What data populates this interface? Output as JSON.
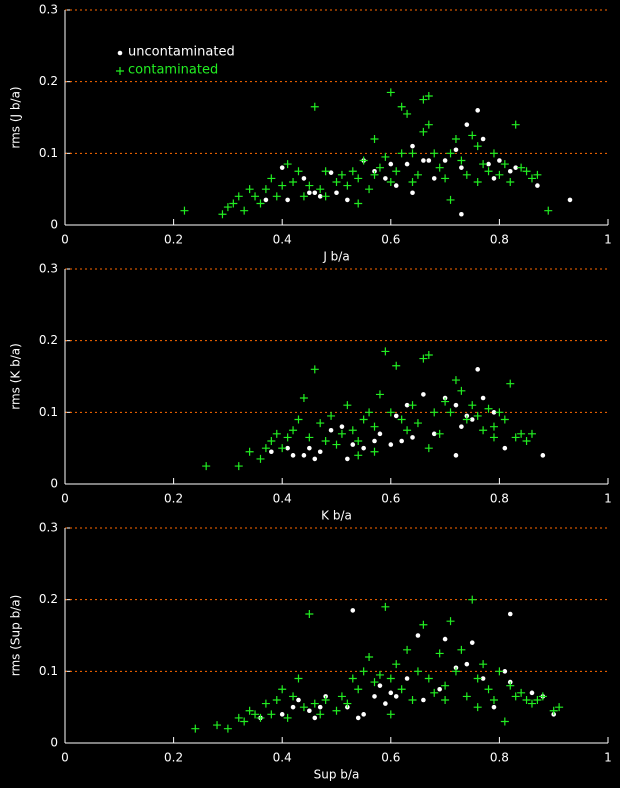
{
  "chart_data": [
    {
      "type": "scatter",
      "xlabel": "J b/a",
      "ylabel": "rms (J b/a)",
      "xlim": [
        0,
        1
      ],
      "ylim": [
        0,
        0.3
      ],
      "xticks": [
        0,
        0.2,
        0.4,
        0.6,
        0.8,
        1
      ],
      "yticks": [
        0,
        0.1,
        0.2,
        0.3
      ],
      "grid": true,
      "grid_color": "#ff6a00",
      "legend": "upper left",
      "series": [
        {
          "name": "uncontaminated",
          "color": "#ffffff",
          "marker": "circle",
          "x": [
            0.37,
            0.4,
            0.41,
            0.44,
            0.45,
            0.46,
            0.47,
            0.49,
            0.52,
            0.55,
            0.57,
            0.59,
            0.6,
            0.61,
            0.63,
            0.64,
            0.64,
            0.66,
            0.67,
            0.68,
            0.7,
            0.72,
            0.73,
            0.74,
            0.76,
            0.77,
            0.78,
            0.79,
            0.8,
            0.82,
            0.83,
            0.87,
            0.93,
            0.73,
            0.5
          ],
          "y": [
            0.035,
            0.08,
            0.035,
            0.065,
            0.045,
            0.045,
            0.04,
            0.073,
            0.035,
            0.09,
            0.075,
            0.065,
            0.085,
            0.055,
            0.085,
            0.11,
            0.045,
            0.09,
            0.09,
            0.065,
            0.09,
            0.105,
            0.015,
            0.14,
            0.16,
            0.12,
            0.085,
            0.065,
            0.09,
            0.075,
            0.08,
            0.055,
            0.035,
            0.08,
            0.045
          ]
        },
        {
          "name": "contaminated",
          "color": "#22ee22",
          "marker": "plus",
          "x": [
            0.22,
            0.29,
            0.3,
            0.31,
            0.32,
            0.33,
            0.34,
            0.35,
            0.36,
            0.37,
            0.38,
            0.39,
            0.4,
            0.41,
            0.42,
            0.43,
            0.44,
            0.45,
            0.46,
            0.47,
            0.48,
            0.5,
            0.51,
            0.52,
            0.53,
            0.54,
            0.55,
            0.56,
            0.57,
            0.58,
            0.59,
            0.6,
            0.6,
            0.61,
            0.62,
            0.62,
            0.63,
            0.64,
            0.65,
            0.66,
            0.66,
            0.67,
            0.68,
            0.69,
            0.7,
            0.71,
            0.72,
            0.73,
            0.74,
            0.75,
            0.76,
            0.77,
            0.78,
            0.79,
            0.8,
            0.81,
            0.82,
            0.83,
            0.84,
            0.85,
            0.86,
            0.87,
            0.89,
            0.57,
            0.67,
            0.71,
            0.76,
            0.54,
            0.48,
            0.64
          ],
          "y": [
            0.02,
            0.015,
            0.025,
            0.03,
            0.04,
            0.02,
            0.05,
            0.04,
            0.03,
            0.05,
            0.065,
            0.04,
            0.055,
            0.085,
            0.06,
            0.075,
            0.04,
            0.055,
            0.165,
            0.05,
            0.04,
            0.06,
            0.07,
            0.055,
            0.075,
            0.065,
            0.09,
            0.05,
            0.07,
            0.08,
            0.095,
            0.185,
            0.06,
            0.075,
            0.1,
            0.165,
            0.155,
            0.1,
            0.07,
            0.13,
            0.175,
            0.18,
            0.1,
            0.08,
            0.065,
            0.1,
            0.12,
            0.09,
            0.07,
            0.125,
            0.11,
            0.085,
            0.075,
            0.1,
            0.07,
            0.085,
            0.06,
            0.14,
            0.08,
            0.075,
            0.065,
            0.07,
            0.02,
            0.12,
            0.14,
            0.035,
            0.06,
            0.03,
            0.075,
            0.06
          ]
        }
      ]
    },
    {
      "type": "scatter",
      "xlabel": "K b/a",
      "ylabel": "rms (K b/a)",
      "xlim": [
        0,
        1
      ],
      "ylim": [
        0,
        0.3
      ],
      "xticks": [
        0,
        0.2,
        0.4,
        0.6,
        0.8,
        1
      ],
      "yticks": [
        0,
        0.1,
        0.2,
        0.3
      ],
      "grid": true,
      "grid_color": "#ff6a00",
      "series": [
        {
          "color": "#ffffff",
          "marker": "circle",
          "x": [
            0.38,
            0.41,
            0.42,
            0.44,
            0.45,
            0.46,
            0.47,
            0.49,
            0.51,
            0.52,
            0.53,
            0.55,
            0.57,
            0.58,
            0.6,
            0.61,
            0.62,
            0.63,
            0.64,
            0.66,
            0.68,
            0.7,
            0.72,
            0.73,
            0.74,
            0.76,
            0.77,
            0.79,
            0.72,
            0.81,
            0.88,
            0.75
          ],
          "y": [
            0.045,
            0.05,
            0.04,
            0.04,
            0.05,
            0.035,
            0.045,
            0.075,
            0.08,
            0.035,
            0.055,
            0.05,
            0.06,
            0.07,
            0.055,
            0.095,
            0.06,
            0.11,
            0.065,
            0.125,
            0.07,
            0.12,
            0.11,
            0.08,
            0.095,
            0.16,
            0.12,
            0.1,
            0.04,
            0.05,
            0.04,
            0.09
          ]
        },
        {
          "color": "#22ee22",
          "marker": "plus",
          "x": [
            0.26,
            0.32,
            0.34,
            0.36,
            0.37,
            0.38,
            0.39,
            0.4,
            0.41,
            0.42,
            0.43,
            0.44,
            0.45,
            0.46,
            0.47,
            0.48,
            0.49,
            0.5,
            0.51,
            0.52,
            0.53,
            0.54,
            0.55,
            0.56,
            0.57,
            0.58,
            0.59,
            0.6,
            0.61,
            0.62,
            0.63,
            0.64,
            0.65,
            0.66,
            0.67,
            0.68,
            0.69,
            0.7,
            0.71,
            0.72,
            0.73,
            0.74,
            0.75,
            0.76,
            0.77,
            0.78,
            0.79,
            0.8,
            0.81,
            0.82,
            0.83,
            0.84,
            0.85,
            0.86,
            0.57,
            0.67,
            0.79,
            0.54
          ],
          "y": [
            0.025,
            0.025,
            0.045,
            0.035,
            0.05,
            0.06,
            0.07,
            0.05,
            0.065,
            0.075,
            0.09,
            0.12,
            0.065,
            0.16,
            0.085,
            0.06,
            0.095,
            0.055,
            0.07,
            0.11,
            0.075,
            0.06,
            0.09,
            0.1,
            0.08,
            0.125,
            0.185,
            0.1,
            0.165,
            0.09,
            0.075,
            0.11,
            0.085,
            0.175,
            0.18,
            0.1,
            0.07,
            0.115,
            0.1,
            0.145,
            0.13,
            0.09,
            0.11,
            0.095,
            0.075,
            0.105,
            0.08,
            0.1,
            0.09,
            0.14,
            0.065,
            0.07,
            0.06,
            0.07,
            0.045,
            0.05,
            0.065,
            0.04
          ]
        }
      ]
    },
    {
      "type": "scatter",
      "xlabel": "Sup b/a",
      "ylabel": "rms (Sup b/a)",
      "xlim": [
        0,
        1
      ],
      "ylim": [
        0,
        0.3
      ],
      "xticks": [
        0,
        0.2,
        0.4,
        0.6,
        0.8,
        1
      ],
      "yticks": [
        0,
        0.1,
        0.2,
        0.3
      ],
      "grid": true,
      "grid_color": "#ff6a00",
      "series": [
        {
          "color": "#ffffff",
          "marker": "circle",
          "x": [
            0.36,
            0.4,
            0.42,
            0.43,
            0.45,
            0.46,
            0.47,
            0.48,
            0.52,
            0.53,
            0.54,
            0.55,
            0.57,
            0.58,
            0.59,
            0.6,
            0.61,
            0.63,
            0.65,
            0.66,
            0.69,
            0.7,
            0.72,
            0.74,
            0.75,
            0.77,
            0.79,
            0.81,
            0.82,
            0.82,
            0.86,
            0.88,
            0.9
          ],
          "y": [
            0.035,
            0.04,
            0.05,
            0.06,
            0.045,
            0.035,
            0.05,
            0.065,
            0.05,
            0.185,
            0.035,
            0.04,
            0.065,
            0.08,
            0.055,
            0.07,
            0.065,
            0.09,
            0.15,
            0.06,
            0.075,
            0.145,
            0.105,
            0.11,
            0.14,
            0.09,
            0.05,
            0.1,
            0.18,
            0.085,
            0.07,
            0.065,
            0.04
          ]
        },
        {
          "color": "#22ee22",
          "marker": "plus",
          "x": [
            0.24,
            0.28,
            0.3,
            0.32,
            0.33,
            0.34,
            0.35,
            0.36,
            0.37,
            0.38,
            0.39,
            0.4,
            0.41,
            0.42,
            0.43,
            0.44,
            0.45,
            0.46,
            0.47,
            0.48,
            0.5,
            0.51,
            0.52,
            0.53,
            0.54,
            0.55,
            0.56,
            0.57,
            0.58,
            0.59,
            0.6,
            0.61,
            0.62,
            0.63,
            0.64,
            0.65,
            0.66,
            0.67,
            0.68,
            0.69,
            0.7,
            0.71,
            0.72,
            0.73,
            0.74,
            0.75,
            0.76,
            0.77,
            0.78,
            0.79,
            0.8,
            0.81,
            0.82,
            0.83,
            0.84,
            0.85,
            0.86,
            0.87,
            0.88,
            0.9,
            0.91,
            0.6,
            0.7,
            0.76
          ],
          "y": [
            0.02,
            0.025,
            0.02,
            0.035,
            0.03,
            0.045,
            0.04,
            0.035,
            0.055,
            0.04,
            0.06,
            0.075,
            0.035,
            0.065,
            0.09,
            0.05,
            0.18,
            0.055,
            0.04,
            0.06,
            0.045,
            0.065,
            0.055,
            0.09,
            0.075,
            0.1,
            0.12,
            0.085,
            0.095,
            0.19,
            0.09,
            0.11,
            0.075,
            0.13,
            0.06,
            0.1,
            0.165,
            0.09,
            0.07,
            0.125,
            0.08,
            0.17,
            0.1,
            0.13,
            0.065,
            0.2,
            0.09,
            0.11,
            0.075,
            0.06,
            0.1,
            0.03,
            0.08,
            0.065,
            0.07,
            0.06,
            0.055,
            0.06,
            0.065,
            0.045,
            0.05,
            0.04,
            0.06,
            0.05
          ]
        }
      ]
    }
  ]
}
